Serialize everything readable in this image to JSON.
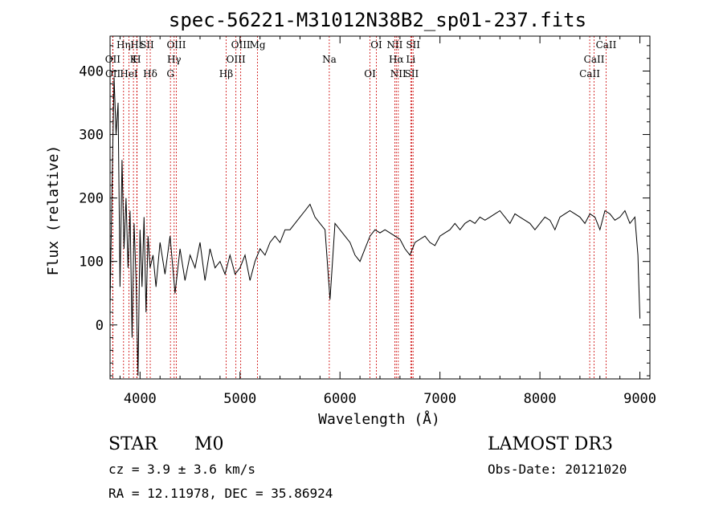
{
  "chart_data": {
    "type": "line",
    "title": "spec-56221-M31012N38B2_sp01-237.fits",
    "xlabel": "Wavelength (Å)",
    "ylabel": "Flux (relative)",
    "xlim": [
      3700,
      9100
    ],
    "ylim": [
      -85,
      455
    ],
    "x_ticks": [
      4000,
      5000,
      6000,
      7000,
      8000,
      9000
    ],
    "y_ticks": [
      0,
      100,
      200,
      300,
      400
    ],
    "x_tick_labels": [
      "4000",
      "5000",
      "6000",
      "7000",
      "8000",
      "9000"
    ],
    "y_tick_labels": [
      "0",
      "100",
      "200",
      "300",
      "400"
    ],
    "grid": false,
    "line_color": "#000000",
    "marker_color": "#cc0000",
    "series": [
      {
        "x": [
          3700,
          3720,
          3740,
          3760,
          3780,
          3800,
          3820,
          3840,
          3860,
          3880,
          3900,
          3920,
          3940,
          3960,
          3980,
          4000,
          4020,
          4040,
          4060,
          4080,
          4100,
          4130,
          4160,
          4200,
          4250,
          4300,
          4350,
          4400,
          4450,
          4500,
          4550,
          4600,
          4650,
          4700,
          4750,
          4800,
          4850,
          4900,
          4950,
          5000,
          5050,
          5100,
          5150,
          5200,
          5250,
          5300,
          5350,
          5400,
          5450,
          5500,
          5550,
          5600,
          5650,
          5700,
          5750,
          5800,
          5850,
          5900,
          5950,
          6000,
          6050,
          6100,
          6150,
          6200,
          6250,
          6300,
          6350,
          6400,
          6450,
          6500,
          6550,
          6600,
          6650,
          6700,
          6750,
          6800,
          6850,
          6900,
          6950,
          7000,
          7050,
          7100,
          7150,
          7200,
          7250,
          7300,
          7350,
          7400,
          7450,
          7500,
          7550,
          7600,
          7650,
          7700,
          7750,
          7800,
          7850,
          7900,
          7950,
          8000,
          8050,
          8100,
          8150,
          8200,
          8250,
          8300,
          8350,
          8400,
          8450,
          8500,
          8550,
          8600,
          8650,
          8700,
          8750,
          8800,
          8850,
          8900,
          8950,
          8980,
          8990,
          9000
        ],
        "y": [
          30,
          220,
          390,
          300,
          350,
          60,
          260,
          120,
          200,
          90,
          180,
          -20,
          160,
          70,
          -80,
          150,
          60,
          170,
          20,
          140,
          90,
          110,
          60,
          130,
          80,
          140,
          50,
          120,
          70,
          110,
          90,
          130,
          70,
          120,
          90,
          100,
          80,
          110,
          80,
          90,
          110,
          70,
          100,
          120,
          110,
          130,
          140,
          130,
          150,
          150,
          160,
          170,
          180,
          190,
          170,
          160,
          150,
          40,
          160,
          150,
          140,
          130,
          110,
          100,
          120,
          140,
          150,
          145,
          150,
          145,
          140,
          135,
          120,
          110,
          130,
          135,
          140,
          130,
          125,
          140,
          145,
          150,
          160,
          150,
          160,
          165,
          160,
          170,
          165,
          170,
          175,
          180,
          170,
          160,
          175,
          170,
          165,
          160,
          150,
          160,
          170,
          165,
          150,
          170,
          175,
          180,
          175,
          170,
          160,
          175,
          170,
          150,
          180,
          175,
          165,
          170,
          180,
          160,
          170,
          110,
          60,
          10
        ]
      }
    ],
    "spectral_lines": [
      {
        "name": "Hε",
        "x": 3970
      },
      {
        "name": "K",
        "x": 3934
      },
      {
        "name": "Hδ",
        "x": 4102
      },
      {
        "name": "OIII",
        "x": 4363
      },
      {
        "name": "OII",
        "x": 3727
      },
      {
        "name": "HeI",
        "x": 3889
      },
      {
        "name": "SII",
        "x": 4069
      },
      {
        "name": "Hγ",
        "x": 4341
      },
      {
        "name": "OII",
        "x": 3729
      },
      {
        "name": "Hη",
        "x": 3835
      },
      {
        "name": "H",
        "x": 3968
      },
      {
        "name": "G",
        "x": 4304
      },
      {
        "name": "OIII",
        "x": 5007
      },
      {
        "name": "OIII",
        "x": 4959
      },
      {
        "name": "Hβ",
        "x": 4861
      },
      {
        "name": "Mg",
        "x": 5175
      },
      {
        "name": "Na",
        "x": 5893
      },
      {
        "name": "OI",
        "x": 6300
      },
      {
        "name": "OI",
        "x": 6364
      },
      {
        "name": "Hα",
        "x": 6563
      },
      {
        "name": "SII",
        "x": 6717
      },
      {
        "name": "NII",
        "x": 6548
      },
      {
        "name": "Li",
        "x": 6708
      },
      {
        "name": "NII",
        "x": 6583
      },
      {
        "name": "SII",
        "x": 6731
      },
      {
        "name": "CaII",
        "x": 8542
      },
      {
        "name": "CaII",
        "x": 8498
      },
      {
        "name": "CaII",
        "x": 8662
      }
    ]
  },
  "footer": {
    "object_type": "STAR",
    "subclass": "M0",
    "survey": "LAMOST DR3",
    "cz": "cz = 3.9 ± 3.6 km/s",
    "obs_date": "Obs-Date: 20121020",
    "coords": "RA =  12.11978, DEC =  35.86924"
  }
}
